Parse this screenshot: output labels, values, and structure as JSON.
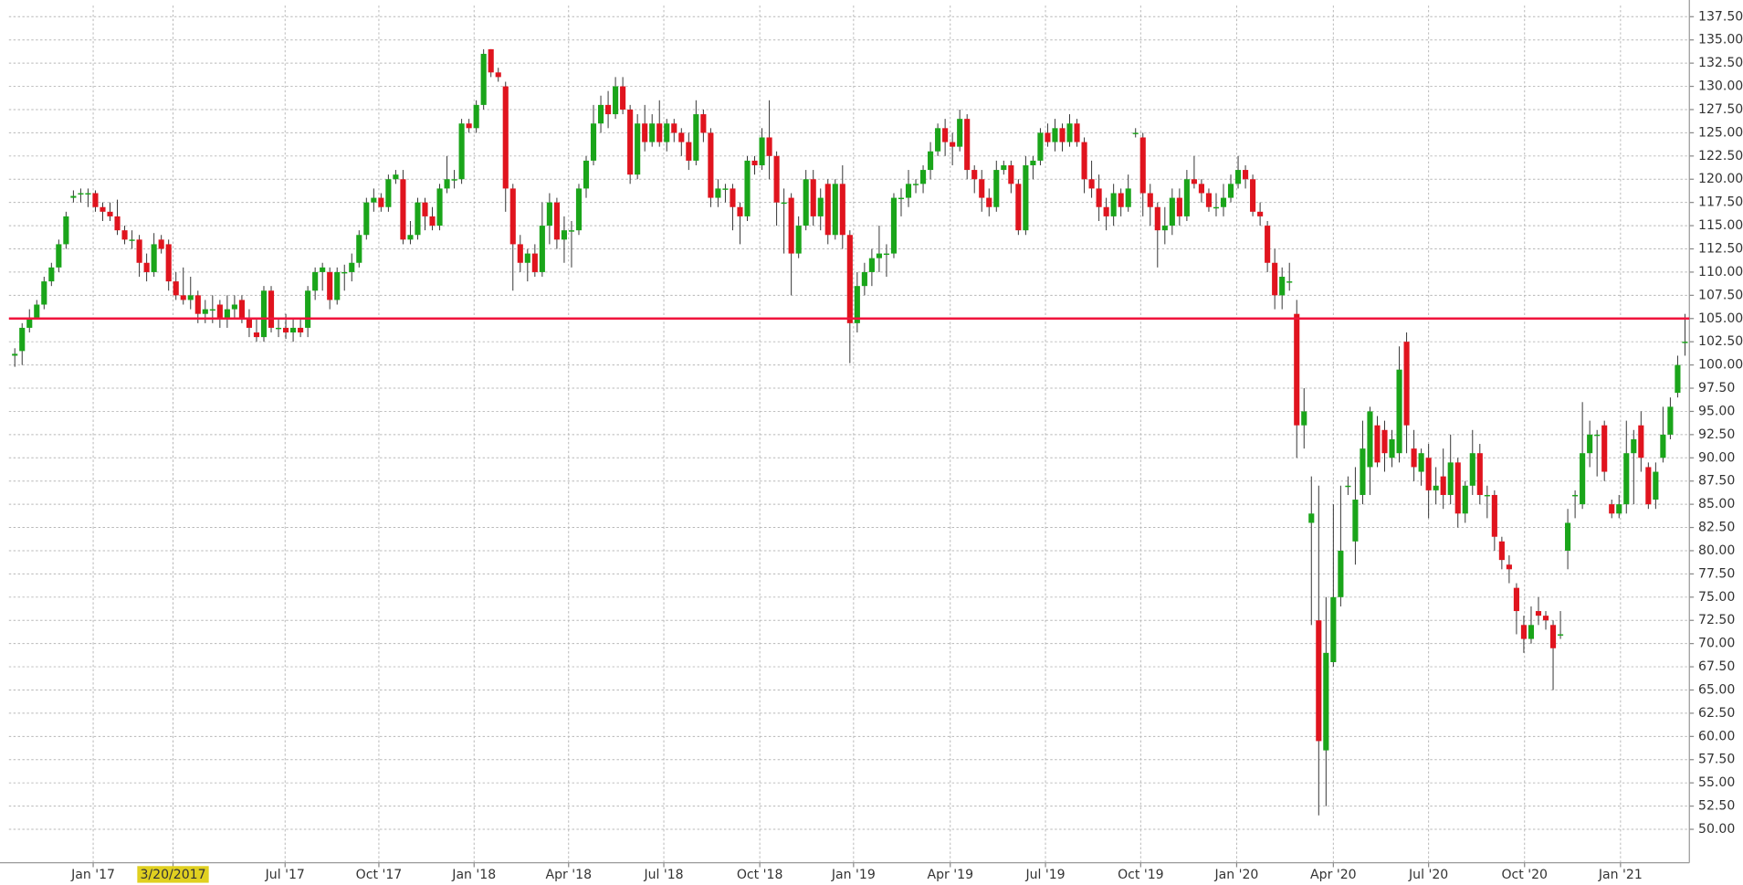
{
  "chart_data": {
    "type": "candlestick",
    "up_color": "#1aa51a",
    "down_color": "#e0141e",
    "grid": true,
    "hline": {
      "value": 105,
      "color": "#f0143c"
    },
    "xlim": [
      -0.8,
      228.6
    ],
    "ylim": [
      46.4,
      138.7
    ],
    "xticks": [
      {
        "value": 10.7,
        "label": "Jan '17"
      },
      {
        "value": 21.6,
        "label": "3/20/2017"
      },
      {
        "value": 36.9,
        "label": "Jul '17"
      },
      {
        "value": 49.7,
        "label": "Oct '17"
      },
      {
        "value": 62.7,
        "label": "Jan '18"
      },
      {
        "value": 75.6,
        "label": "Apr '18"
      },
      {
        "value": 88.6,
        "label": "Jul '18"
      },
      {
        "value": 101.7,
        "label": "Oct '18"
      },
      {
        "value": 114.5,
        "label": "Jan '19"
      },
      {
        "value": 127.7,
        "label": "Apr '19"
      },
      {
        "value": 140.7,
        "label": "Jul '19"
      },
      {
        "value": 153.7,
        "label": "Oct '19"
      },
      {
        "value": 166.8,
        "label": "Jan '20"
      },
      {
        "value": 180,
        "label": "Apr '20"
      },
      {
        "value": 193,
        "label": "Jul '20"
      },
      {
        "value": 206.1,
        "label": "Oct '20"
      },
      {
        "value": 219.2,
        "label": "Jan '21"
      }
    ],
    "yticks": [
      {
        "value": 50,
        "label": "50.00"
      },
      {
        "value": 52.5,
        "label": "52.50"
      },
      {
        "value": 55,
        "label": "55.00"
      },
      {
        "value": 57.5,
        "label": "57.50"
      },
      {
        "value": 60,
        "label": "60.00"
      },
      {
        "value": 62.5,
        "label": "62.50"
      },
      {
        "value": 65,
        "label": "65.00"
      },
      {
        "value": 67.5,
        "label": "67.50"
      },
      {
        "value": 70,
        "label": "70.00"
      },
      {
        "value": 72.5,
        "label": "72.50"
      },
      {
        "value": 75,
        "label": "75.00"
      },
      {
        "value": 77.5,
        "label": "77.50"
      },
      {
        "value": 80,
        "label": "80.00"
      },
      {
        "value": 82.5,
        "label": "82.50"
      },
      {
        "value": 85,
        "label": "85.00"
      },
      {
        "value": 87.5,
        "label": "87.50"
      },
      {
        "value": 90,
        "label": "90.00"
      },
      {
        "value": 92.5,
        "label": "92.50"
      },
      {
        "value": 95,
        "label": "95.00"
      },
      {
        "value": 97.5,
        "label": "97.50"
      },
      {
        "value": 100,
        "label": "100.00"
      },
      {
        "value": 102.5,
        "label": "102.50"
      },
      {
        "value": 105,
        "label": "105.00"
      },
      {
        "value": 107.5,
        "label": "107.50"
      },
      {
        "value": 110,
        "label": "110.00"
      },
      {
        "value": 112.5,
        "label": "112.50"
      },
      {
        "value": 115,
        "label": "115.00"
      },
      {
        "value": 117.5,
        "label": "117.50"
      },
      {
        "value": 120,
        "label": "120.00"
      },
      {
        "value": 122.5,
        "label": "122.50"
      },
      {
        "value": 125,
        "label": "125.00"
      },
      {
        "value": 127.5,
        "label": "127.50"
      },
      {
        "value": 130,
        "label": "130.00"
      },
      {
        "value": 132.5,
        "label": "132.50"
      },
      {
        "value": 135,
        "label": "135.00"
      },
      {
        "value": 137.5,
        "label": "137.50"
      }
    ],
    "ohlc": [
      [
        101,
        101.8,
        99.8,
        101.2
      ],
      [
        101.5,
        104.5,
        100,
        104
      ],
      [
        104,
        106,
        103.5,
        105
      ],
      [
        105,
        107,
        105,
        106.5
      ],
      [
        106.5,
        109.5,
        106,
        109
      ],
      [
        109,
        111,
        108.5,
        110.5
      ],
      [
        110.5,
        113.5,
        110,
        113
      ],
      [
        113,
        116.5,
        112.5,
        116
      ],
      [
        118,
        118.8,
        117.5,
        118.2
      ],
      [
        118.5,
        119,
        117.5,
        118.5
      ],
      [
        118.5,
        119,
        117,
        118.5
      ],
      [
        118.5,
        118.8,
        116.5,
        117
      ],
      [
        117,
        117.5,
        115.5,
        116.5
      ],
      [
        116.5,
        117.5,
        115.5,
        116
      ],
      [
        116,
        117.8,
        114,
        114.5
      ],
      [
        114.5,
        115,
        113,
        113.5
      ],
      [
        113.5,
        114.5,
        112.5,
        113.5
      ],
      [
        113.5,
        114,
        109.5,
        111
      ],
      [
        111,
        112,
        109,
        110
      ],
      [
        110,
        114.2,
        109.5,
        113
      ],
      [
        113.5,
        114,
        112,
        112.5
      ],
      [
        113,
        113.5,
        108,
        109
      ],
      [
        109,
        110,
        107,
        107.5
      ],
      [
        107.5,
        110.5,
        106.5,
        107
      ],
      [
        107,
        109.5,
        106,
        107.5
      ],
      [
        107.5,
        108,
        104.5,
        105.5
      ],
      [
        105.5,
        107,
        104.5,
        106
      ],
      [
        106,
        107.5,
        104.5,
        106
      ],
      [
        106.5,
        107,
        104,
        105
      ],
      [
        105,
        107.5,
        104,
        106
      ],
      [
        106,
        107.5,
        105,
        106.5
      ],
      [
        107,
        107.5,
        104.5,
        105
      ],
      [
        105,
        106,
        103,
        104
      ],
      [
        103.5,
        105,
        102.5,
        103
      ],
      [
        103,
        108.5,
        102.5,
        108
      ],
      [
        108,
        108.5,
        103.5,
        104
      ],
      [
        104,
        105,
        103,
        104
      ],
      [
        104,
        105.5,
        102.8,
        103.5
      ],
      [
        103.5,
        105,
        102.5,
        104
      ],
      [
        104,
        105,
        103,
        103.5
      ],
      [
        104,
        108.5,
        103,
        108
      ],
      [
        108,
        110.5,
        107,
        110
      ],
      [
        110,
        111,
        108,
        110.5
      ],
      [
        110,
        110.5,
        106,
        107
      ],
      [
        107,
        110.5,
        106.5,
        110
      ],
      [
        110,
        110.8,
        108,
        110
      ],
      [
        110,
        112,
        109,
        111
      ],
      [
        111,
        114.5,
        110.5,
        114
      ],
      [
        114,
        118,
        113.5,
        117.5
      ],
      [
        117.5,
        119,
        116.5,
        118
      ],
      [
        118,
        118.5,
        116.5,
        117
      ],
      [
        117,
        120.5,
        116.5,
        120
      ],
      [
        120,
        121,
        119.5,
        120.5
      ],
      [
        120,
        121,
        113,
        113.5
      ],
      [
        113.5,
        115.5,
        113,
        114
      ],
      [
        114,
        118,
        113.5,
        117.5
      ],
      [
        117.5,
        118,
        114.5,
        116
      ],
      [
        116,
        117,
        114.5,
        115
      ],
      [
        115,
        119.5,
        114.5,
        119
      ],
      [
        119,
        122.5,
        118.5,
        120
      ],
      [
        120,
        121,
        119,
        120
      ],
      [
        120,
        126.5,
        119.5,
        126
      ],
      [
        126,
        126.5,
        125,
        125.5
      ],
      [
        125.5,
        128.5,
        125,
        128
      ],
      [
        128,
        134,
        127.5,
        133.5
      ],
      [
        134,
        134,
        131,
        131.5
      ],
      [
        131.5,
        132,
        130.5,
        131
      ],
      [
        130,
        130.5,
        116.5,
        119
      ],
      [
        119,
        119.5,
        108,
        113
      ],
      [
        113,
        114,
        110,
        111
      ],
      [
        111,
        112.5,
        109,
        112
      ],
      [
        112,
        113,
        109.5,
        110
      ],
      [
        110,
        117.5,
        109.5,
        115
      ],
      [
        115,
        118.5,
        113,
        117.5
      ],
      [
        117.5,
        118,
        112.5,
        113.5
      ],
      [
        113.5,
        116,
        111,
        114.5
      ],
      [
        114.5,
        115.5,
        110.5,
        114.5
      ],
      [
        114.5,
        119.5,
        114,
        119
      ],
      [
        119,
        122.5,
        118,
        122
      ],
      [
        122,
        128,
        121.5,
        126
      ],
      [
        126,
        129,
        125,
        128
      ],
      [
        128,
        129.5,
        125.5,
        127
      ],
      [
        127,
        131,
        126.5,
        130
      ],
      [
        130,
        131,
        127,
        127.5
      ],
      [
        127.5,
        128,
        119.5,
        120.5
      ],
      [
        120.5,
        127,
        120,
        126
      ],
      [
        126,
        128,
        123,
        124
      ],
      [
        124,
        127,
        123.5,
        126
      ],
      [
        126,
        128.5,
        123.5,
        124
      ],
      [
        124,
        126.5,
        123,
        126
      ],
      [
        126,
        126.5,
        124,
        125
      ],
      [
        125,
        125.5,
        122.5,
        124
      ],
      [
        124,
        125,
        121,
        122
      ],
      [
        122,
        128.5,
        121.5,
        127
      ],
      [
        127,
        127.5,
        124,
        125
      ],
      [
        125,
        125.5,
        117,
        118
      ],
      [
        118,
        120,
        117,
        119
      ],
      [
        119,
        119.5,
        117.5,
        119
      ],
      [
        119,
        119.5,
        114.5,
        117
      ],
      [
        117,
        117.5,
        113,
        116
      ],
      [
        116,
        122.5,
        115.5,
        122
      ],
      [
        122,
        122.5,
        120.5,
        121.5
      ],
      [
        121.5,
        125.5,
        121,
        124.5
      ],
      [
        124.5,
        128.5,
        120,
        122.5
      ],
      [
        122.5,
        123,
        115,
        117.5
      ],
      [
        117.5,
        119,
        112,
        117.5
      ],
      [
        118,
        118.5,
        107.5,
        112
      ],
      [
        112,
        116,
        111.5,
        115
      ],
      [
        115,
        121,
        114.5,
        120
      ],
      [
        120,
        121,
        115,
        116
      ],
      [
        116,
        119,
        114.5,
        118
      ],
      [
        119.5,
        120,
        113,
        114
      ],
      [
        114,
        120,
        113.5,
        119.5
      ],
      [
        119.5,
        121.5,
        112.5,
        114
      ],
      [
        114,
        114.5,
        100.2,
        104.5
      ],
      [
        104.5,
        110,
        103.5,
        108.5
      ],
      [
        108.5,
        111,
        107.5,
        110
      ],
      [
        110,
        112.5,
        108.5,
        111.5
      ],
      [
        111.5,
        115,
        110,
        112
      ],
      [
        112,
        113,
        109.5,
        112
      ],
      [
        112,
        118.5,
        111.5,
        118
      ],
      [
        118,
        119,
        116,
        118
      ],
      [
        118,
        121,
        117,
        119.5
      ],
      [
        119.5,
        120,
        118.5,
        119.5
      ],
      [
        119.5,
        121.5,
        118.5,
        121
      ],
      [
        121,
        124,
        120,
        123
      ],
      [
        123,
        126,
        122.5,
        125.5
      ],
      [
        125.5,
        126.5,
        122.5,
        124
      ],
      [
        124,
        125,
        121.5,
        123.5
      ],
      [
        123.5,
        127.5,
        123,
        126.5
      ],
      [
        126.5,
        127,
        120,
        121
      ],
      [
        121,
        121.5,
        118.5,
        120
      ],
      [
        120,
        121,
        116.5,
        118
      ],
      [
        118,
        119,
        116,
        117
      ],
      [
        117,
        122,
        116.5,
        121
      ],
      [
        121,
        122,
        120.5,
        121.5
      ],
      [
        121.5,
        122,
        118.5,
        119.5
      ],
      [
        119.5,
        120,
        114,
        114.5
      ],
      [
        114.5,
        122.5,
        114,
        121.5
      ],
      [
        121.5,
        122.5,
        120,
        122
      ],
      [
        122,
        125.5,
        121.5,
        125
      ],
      [
        125,
        126,
        123.5,
        124
      ],
      [
        124,
        126.5,
        123,
        125.5
      ],
      [
        125.5,
        126,
        123,
        124
      ],
      [
        124,
        127,
        123.5,
        126
      ],
      [
        126,
        126.5,
        123.5,
        124
      ],
      [
        124,
        124.5,
        118.5,
        120
      ],
      [
        120,
        122,
        118,
        119
      ],
      [
        119,
        120.5,
        115.5,
        117
      ],
      [
        117,
        118,
        114.5,
        116
      ],
      [
        116,
        119.5,
        115,
        118.5
      ],
      [
        118.5,
        119,
        116,
        117
      ],
      [
        117,
        120.5,
        116.5,
        119
      ],
      [
        125,
        125.5,
        124.5,
        125
      ],
      [
        124.5,
        125,
        116,
        118.5
      ],
      [
        118.5,
        119.5,
        115,
        117
      ],
      [
        117,
        117.5,
        110.5,
        114.5
      ],
      [
        114.5,
        117,
        113,
        115
      ],
      [
        115,
        119,
        114,
        118
      ],
      [
        118,
        119,
        115,
        116
      ],
      [
        116,
        121,
        115.5,
        120
      ],
      [
        120,
        122.5,
        119,
        119.5
      ],
      [
        119.5,
        120,
        117.5,
        118.5
      ],
      [
        118.5,
        119,
        116.5,
        117
      ],
      [
        117,
        118.5,
        116,
        117
      ],
      [
        117,
        119.5,
        116,
        118
      ],
      [
        118,
        120.5,
        117.5,
        119.5
      ],
      [
        119.5,
        122.5,
        119,
        121
      ],
      [
        121,
        121.5,
        119,
        120
      ],
      [
        120,
        120.5,
        116,
        116.5
      ],
      [
        116.5,
        117.5,
        115,
        116
      ],
      [
        115,
        115.5,
        110,
        111
      ],
      [
        111,
        112.5,
        106,
        107.5
      ],
      [
        107.5,
        110.5,
        106,
        109.5
      ],
      [
        109,
        111,
        108,
        109
      ],
      [
        105.5,
        107,
        90,
        93.5
      ],
      [
        93.5,
        97.5,
        91,
        95
      ],
      [
        83,
        88,
        72,
        84
      ],
      [
        72.5,
        87,
        51.5,
        59.5
      ],
      [
        58.5,
        75,
        52.5,
        69
      ],
      [
        68,
        85,
        67.5,
        75
      ],
      [
        75,
        87,
        74,
        80
      ],
      [
        87,
        88,
        86,
        87
      ],
      [
        81,
        89,
        78.5,
        85.5
      ],
      [
        86,
        94,
        85,
        91
      ],
      [
        89,
        95.5,
        86,
        95
      ],
      [
        93.5,
        94.5,
        89,
        89.5
      ],
      [
        93,
        94,
        88.5,
        90.5
      ],
      [
        90,
        93,
        89,
        92
      ],
      [
        90.5,
        102,
        89.5,
        99.5
      ],
      [
        102.5,
        103.5,
        90.5,
        93.5
      ],
      [
        91,
        93,
        87.5,
        89
      ],
      [
        88.5,
        91,
        87,
        90.5
      ],
      [
        90,
        91.5,
        83.5,
        86.5
      ],
      [
        86.5,
        89,
        85,
        87
      ],
      [
        88,
        91,
        84.5,
        86
      ],
      [
        86,
        92.5,
        85,
        89.5
      ],
      [
        89.5,
        90,
        82.5,
        84
      ],
      [
        84,
        87.5,
        83,
        87
      ],
      [
        87,
        93,
        86,
        90.5
      ],
      [
        90.5,
        91.5,
        85,
        86
      ],
      [
        86,
        87,
        83.5,
        86
      ],
      [
        86,
        86.5,
        80,
        81.5
      ],
      [
        81,
        81.5,
        78,
        79
      ],
      [
        78.5,
        79.5,
        76.5,
        78
      ],
      [
        76,
        76.5,
        71,
        73.5
      ],
      [
        72,
        73,
        69,
        70.5
      ],
      [
        70.5,
        74,
        70,
        72
      ],
      [
        73.5,
        75,
        72,
        73
      ],
      [
        73,
        73.5,
        71.5,
        72.5
      ],
      [
        72,
        72.5,
        65,
        69.5
      ],
      [
        71,
        73.5,
        70.5,
        71
      ],
      [
        80,
        84.5,
        78,
        83
      ],
      [
        86,
        86.5,
        83.5,
        86
      ],
      [
        85,
        96,
        84.5,
        90.5
      ],
      [
        90.5,
        94,
        89,
        92.5
      ],
      [
        92.5,
        93,
        88,
        92.5
      ],
      [
        93.5,
        94,
        87.5,
        88.5
      ],
      [
        85,
        85.5,
        83.5,
        84
      ],
      [
        84,
        86,
        83.5,
        85
      ],
      [
        85,
        94,
        84,
        90.5
      ],
      [
        90.5,
        93,
        85,
        92
      ],
      [
        93.5,
        95,
        88.5,
        90
      ],
      [
        89,
        89.5,
        84.5,
        85
      ],
      [
        85.5,
        89.5,
        84.5,
        88.5
      ],
      [
        90,
        95.5,
        89.5,
        92.5
      ],
      [
        92.5,
        96.5,
        92,
        95.5
      ],
      [
        97,
        101,
        96.5,
        100
      ],
      [
        102.5,
        105.5,
        101,
        102.5
      ]
    ]
  }
}
